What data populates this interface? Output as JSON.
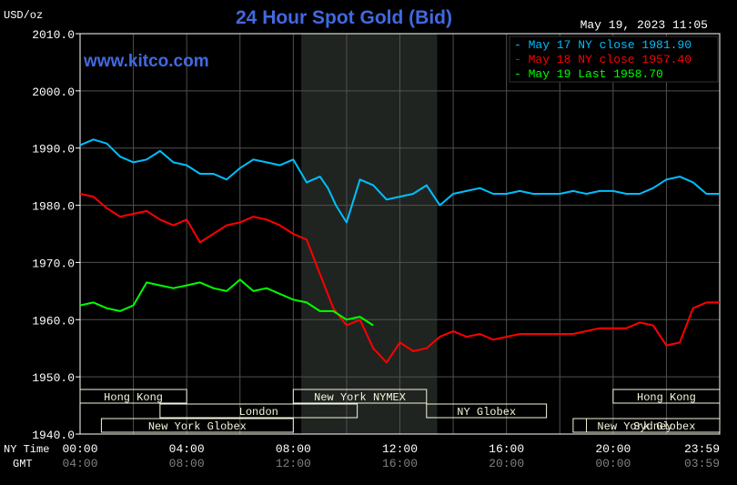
{
  "header": {
    "unit": "USD/oz",
    "title": "24 Hour Spot Gold (Bid)",
    "timestamp": "May 19, 2023 11:05",
    "watermark": "www.kitco.com"
  },
  "colors": {
    "background": "#000000",
    "grid": "#505050",
    "frame": "#ffffff",
    "title": "#4169e1",
    "watermark": "#4169e1",
    "highlight_band": "#202420",
    "session_box": "#f5f5dc",
    "session_text": "#000000",
    "series": [
      "#00bfff",
      "#ff0000",
      "#00ff00"
    ]
  },
  "axis_labels": {
    "ny_time": "NY Time",
    "gmt": "GMT"
  },
  "sessions": [
    {
      "name": "Hong Kong",
      "start": 0.0,
      "end": 4.0
    },
    {
      "name": "London",
      "start": 3.0,
      "end": 10.4
    },
    {
      "name": "New York Globex",
      "start": 0.8,
      "end": 8.0
    },
    {
      "name": "New York NYMEX",
      "start": 8.0,
      "end": 13.0
    },
    {
      "name": "NY Globex",
      "start": 13.0,
      "end": 17.5
    },
    {
      "name": "Sydney",
      "start": 19.0,
      "end": 24.0
    },
    {
      "name": "Hong Kong",
      "start": 20.0,
      "end": 24.0
    },
    {
      "name": "New York Globex",
      "start": 18.5,
      "end": 24.0
    }
  ],
  "chart_data": {
    "type": "line",
    "title": "24 Hour Spot Gold (Bid)",
    "ylabel": "USD/oz",
    "xlabel": "",
    "ylim": [
      1940,
      2010
    ],
    "yticks": [
      "1940.0",
      "1950.0",
      "1960.0",
      "1970.0",
      "1980.0",
      "1990.0",
      "2000.0",
      "2010.0"
    ],
    "xlim": [
      0,
      24
    ],
    "xticks_ny": [
      "00:00",
      "04:00",
      "08:00",
      "12:00",
      "16:00",
      "20:00",
      "23:59"
    ],
    "xticks_gmt": [
      "04:00",
      "08:00",
      "12:00",
      "16:00",
      "20:00",
      "00:00",
      "03:59"
    ],
    "grid": true,
    "legend_position": "top-right",
    "highlight_band_hours": [
      8.3,
      13.4
    ],
    "series": [
      {
        "name": "May 17 NY close 1981.90",
        "x": [
          0,
          0.5,
          1.0,
          1.5,
          2.0,
          2.5,
          3.0,
          3.5,
          4.0,
          4.5,
          5.0,
          5.5,
          6.0,
          6.5,
          7.0,
          7.5,
          8.0,
          8.5,
          9.0,
          9.3,
          9.6,
          10.0,
          10.5,
          11.0,
          11.5,
          12.0,
          12.5,
          13.0,
          13.5,
          14.0,
          14.5,
          15.0,
          15.5,
          16.0,
          16.5,
          17.0,
          17.5,
          18.0,
          18.5,
          19.0,
          19.5,
          20.0,
          20.5,
          21.0,
          21.5,
          22.0,
          22.5,
          23.0,
          23.5,
          24.0
        ],
        "values": [
          1990.5,
          1991.5,
          1990.8,
          1988.5,
          1987.5,
          1988.0,
          1989.5,
          1987.5,
          1987.0,
          1985.5,
          1985.5,
          1984.5,
          1986.5,
          1988.0,
          1987.5,
          1987.0,
          1988.0,
          1984.0,
          1985.0,
          1983.0,
          1980.0,
          1977.0,
          1984.5,
          1983.5,
          1981.0,
          1981.5,
          1982.0,
          1983.5,
          1980.0,
          1982.0,
          1982.5,
          1983.0,
          1982.0,
          1982.0,
          1982.5,
          1982.0,
          1982.0,
          1982.0,
          1982.5,
          1982.0,
          1982.5,
          1982.5,
          1982.0,
          1982.0,
          1983.0,
          1984.5,
          1985.0,
          1984.0,
          1982.0,
          1982.0
        ]
      },
      {
        "name": "May 18 NY close 1957.40",
        "x": [
          0,
          0.5,
          1.0,
          1.5,
          2.0,
          2.5,
          3.0,
          3.5,
          4.0,
          4.5,
          5.0,
          5.5,
          6.0,
          6.5,
          7.0,
          7.5,
          8.0,
          8.5,
          9.0,
          9.5,
          10.0,
          10.5,
          11.0,
          11.5,
          12.0,
          12.5,
          13.0,
          13.5,
          14.0,
          14.5,
          15.0,
          15.5,
          16.0,
          16.5,
          17.0,
          17.5,
          18.0,
          18.5,
          19.0,
          19.5,
          20.0,
          20.5,
          21.0,
          21.5,
          22.0,
          22.5,
          23.0,
          23.5,
          24.0
        ],
        "values": [
          1982.0,
          1981.5,
          1979.5,
          1978.0,
          1978.5,
          1979.0,
          1977.5,
          1976.5,
          1977.5,
          1973.5,
          1975.0,
          1976.5,
          1977.0,
          1978.0,
          1977.5,
          1976.5,
          1975.0,
          1974.0,
          1968.0,
          1962.0,
          1959.0,
          1960.0,
          1955.0,
          1952.5,
          1956.0,
          1954.5,
          1955.0,
          1957.0,
          1958.0,
          1957.0,
          1957.5,
          1956.5,
          1957.0,
          1957.5,
          1957.5,
          1957.5,
          1957.5,
          1957.5,
          1958.0,
          1958.5,
          1958.5,
          1958.5,
          1959.5,
          1959.0,
          1955.5,
          1956.0,
          1962.0,
          1963.0,
          1963.0
        ]
      },
      {
        "name": "May 19 Last 1958.70",
        "x": [
          0,
          0.5,
          1.0,
          1.5,
          2.0,
          2.5,
          3.0,
          3.5,
          4.0,
          4.5,
          5.0,
          5.5,
          6.0,
          6.5,
          7.0,
          7.5,
          8.0,
          8.5,
          9.0,
          9.5,
          10.0,
          10.5,
          11.0
        ],
        "values": [
          1962.5,
          1963.0,
          1962.0,
          1961.5,
          1962.5,
          1966.5,
          1966.0,
          1965.5,
          1966.0,
          1966.5,
          1965.5,
          1965.0,
          1967.0,
          1965.0,
          1965.5,
          1964.5,
          1963.5,
          1963.0,
          1961.5,
          1961.5,
          1960.0,
          1960.5,
          1959.0
        ]
      }
    ]
  }
}
